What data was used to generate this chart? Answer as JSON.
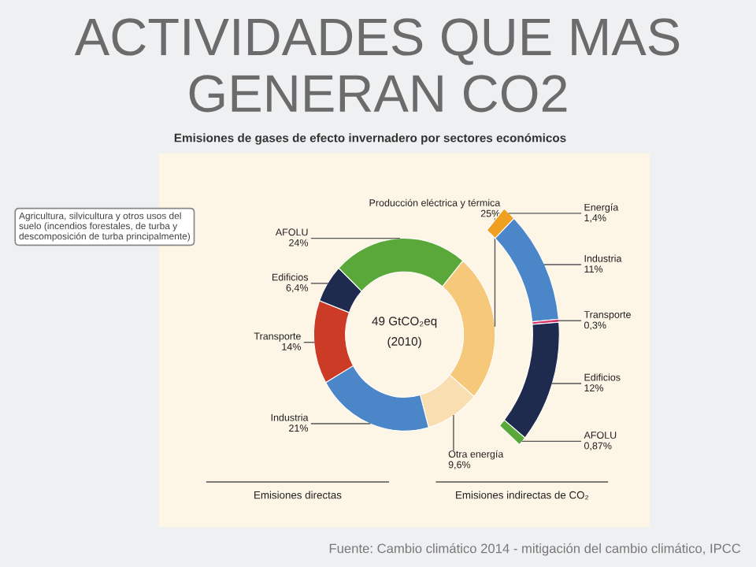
{
  "chart_data": [
    {
      "type": "donut",
      "title": "ACTIVIDADES QUE MAS GENERAN CO2",
      "subtitle": "Emisiones de gases de efecto invernadero por sectores económicos",
      "categories": [
        "Producción eléctrica y térmica",
        "Otra energía",
        "Industria",
        "Transporte",
        "Edificios",
        "AFOLU"
      ],
      "values": [
        25,
        9.6,
        21,
        14,
        6.4,
        24
      ],
      "colors": [
        "#f6c97a",
        "#f8deb0",
        "#4a86c8",
        "#cc3b26",
        "#1f2a4f",
        "#5aa839"
      ],
      "value_labels": [
        "25%",
        "9,6%",
        "21%",
        "14%",
        "6,4%",
        "24%"
      ],
      "annotations": [
        "49 GtCO₂eq",
        "(2010)",
        "Agricultura, silvicultura y otros usos del suelo (incendios forestales, de turba y descomposición de turba principalmente)",
        "Emisiones directas",
        "Fuente: Cambio climático 2014 - mitigación del cambio climático, IPCC"
      ]
    },
    {
      "type": "donut",
      "categories": [
        "Energía",
        "Industria",
        "Transporte",
        "Edificios",
        "AFOLU"
      ],
      "values": [
        1.4,
        11,
        0.3,
        12,
        0.87
      ],
      "colors": [
        "#f0a020",
        "#4a86c8",
        "#d8336a",
        "#1f2a4f",
        "#5aa839"
      ],
      "value_labels": [
        "1,4%",
        "11%",
        "0,3%",
        "12%",
        "0,87%"
      ],
      "annotations": [
        "Emisiones indirectas de CO₂"
      ]
    }
  ]
}
